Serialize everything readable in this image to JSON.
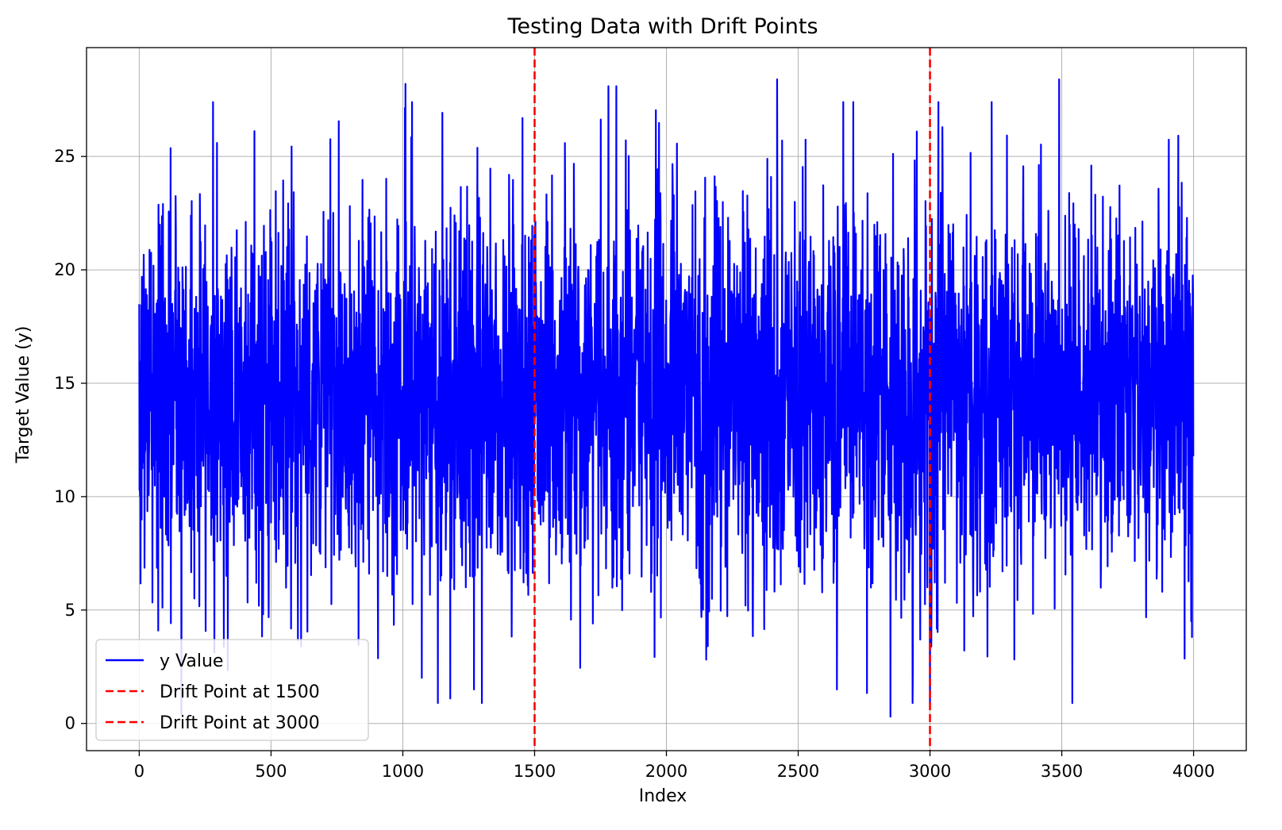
{
  "chart_data": {
    "type": "line",
    "title": "Testing Data with Drift Points",
    "xlabel": "Index",
    "ylabel": "Target Value (y)",
    "xlim": [
      -200,
      4200
    ],
    "ylim": [
      -1.2,
      29.8
    ],
    "xticks": [
      0,
      500,
      1000,
      1500,
      2000,
      2500,
      3000,
      3500,
      4000
    ],
    "yticks": [
      0,
      5,
      10,
      15,
      20,
      25
    ],
    "grid": true,
    "legend_position": "lower-left",
    "series": [
      {
        "name": "y Value",
        "color": "#0000ff",
        "style": "solid",
        "n_points": 4000,
        "x_range": [
          0,
          3999
        ],
        "mean_approx": 14.5,
        "min_approx": 0.3,
        "max_approx": 28.4,
        "notable_extremes": [
          {
            "x": 1010,
            "y": 28.2
          },
          {
            "x": 1780,
            "y": 28.1
          },
          {
            "x": 1810,
            "y": 28.1
          },
          {
            "x": 2420,
            "y": 28.4
          },
          {
            "x": 3490,
            "y": 28.4
          },
          {
            "x": 2850,
            "y": 0.3
          },
          {
            "x": 1180,
            "y": 1.1
          },
          {
            "x": 1300,
            "y": 0.9
          },
          {
            "x": 160,
            "y": 0.4
          },
          {
            "x": 1270,
            "y": 1.5
          }
        ]
      }
    ],
    "vlines": [
      {
        "name": "Drift Point at 1500",
        "x": 1500,
        "color": "#ff0000",
        "style": "dashed"
      },
      {
        "name": "Drift Point at 3000",
        "x": 3000,
        "color": "#ff0000",
        "style": "dashed"
      }
    ]
  }
}
